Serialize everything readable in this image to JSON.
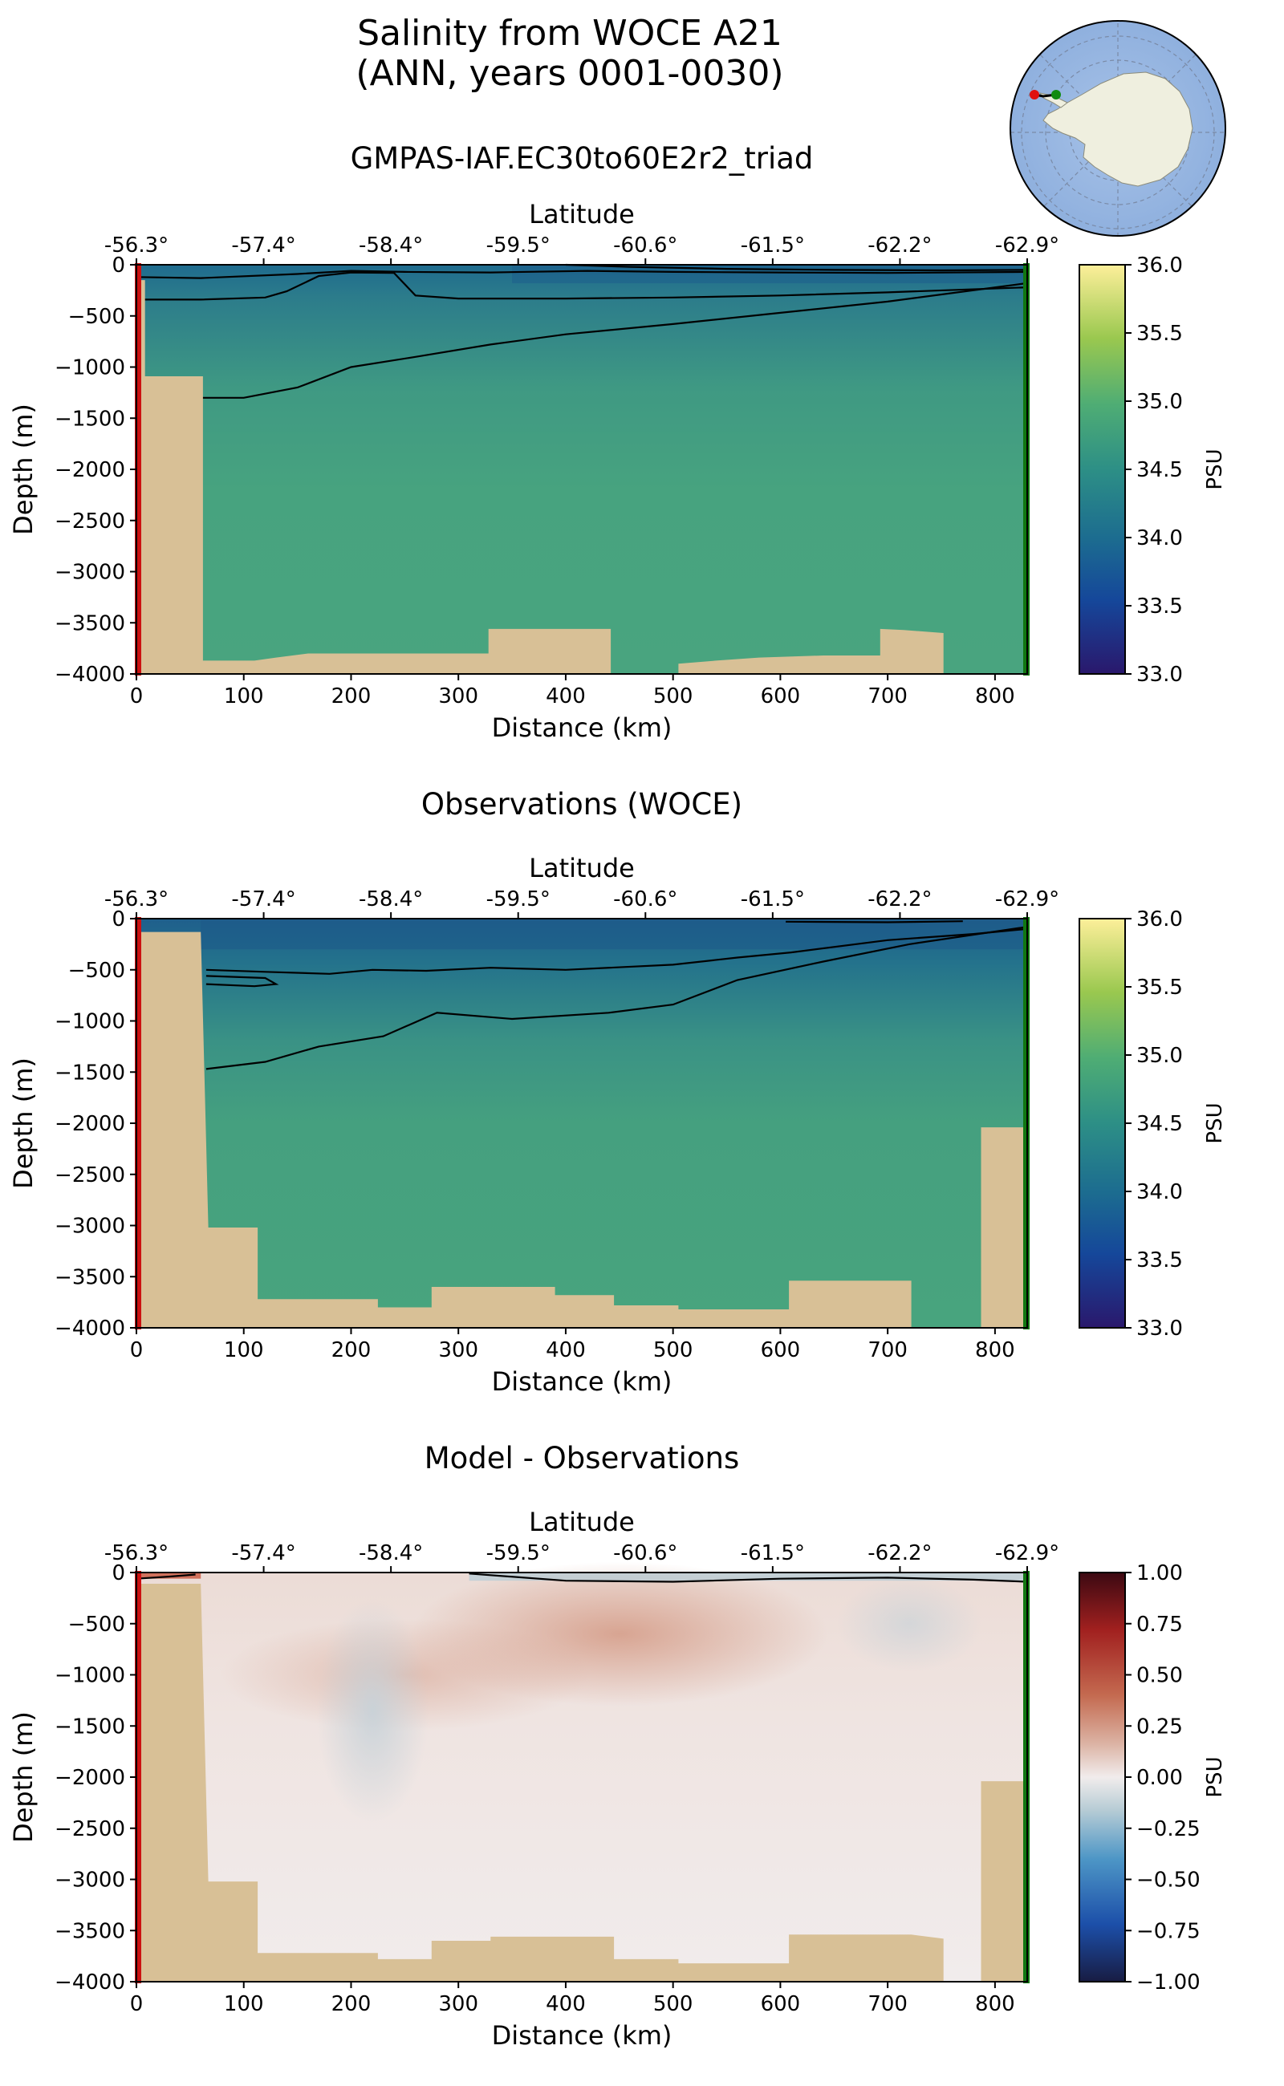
{
  "figure": {
    "title_line1": "Salinity from WOCE A21",
    "title_line2": "(ANN, years 0001-0030)",
    "colors": {
      "bathymetry": "#d8c096",
      "section_start_marker": "#cc1111",
      "section_end_marker": "#117711",
      "contour": "#000000",
      "ocean_map": "#9bb7e0",
      "antarctica_map": "#efefdf"
    },
    "inset_map": {
      "projection": "south-polar-stereographic",
      "position": "top-right",
      "start_marker": "red-dot-icon",
      "end_marker": "green-dot-icon"
    }
  },
  "chart_data": [
    {
      "type": "heatmap",
      "title": "GMPAS-IAF.EC30to60E2r2_triad",
      "xlabel": "Distance (km)",
      "ylabel": "Depth (m)",
      "top_xlabel": "Latitude",
      "xlim": [
        0,
        830
      ],
      "ylim": [
        -4000,
        0
      ],
      "xticks": [
        0,
        100,
        200,
        300,
        400,
        500,
        600,
        700,
        800
      ],
      "yticks": [
        0,
        -500,
        -1000,
        -1500,
        -2000,
        -2500,
        -3000,
        -3500,
        -4000
      ],
      "latitude_ticks": [
        "-56.3°",
        "-57.4°",
        "-58.4°",
        "-59.5°",
        "-60.6°",
        "-61.5°",
        "-62.2°",
        "-62.9°"
      ],
      "colorbar": {
        "label": "PSU",
        "range": [
          33.0,
          36.0
        ],
        "ticks": [
          "33.0",
          "33.5",
          "34.0",
          "34.5",
          "35.0",
          "35.5",
          "36.0"
        ],
        "colormap": "haline"
      },
      "field_description_values": {
        "surface": 34.05,
        "upper": 34.3,
        "deep": 34.68
      },
      "contours": [
        [
          [
            0,
            -120
          ],
          [
            60,
            -130
          ],
          [
            150,
            -90
          ],
          [
            200,
            -60
          ],
          [
            250,
            -70
          ],
          [
            330,
            -75
          ],
          [
            420,
            -60
          ],
          [
            500,
            -70
          ],
          [
            600,
            -75
          ],
          [
            700,
            -80
          ],
          [
            830,
            -70
          ]
        ],
        [
          [
            0,
            -340
          ],
          [
            60,
            -340
          ],
          [
            120,
            -320
          ],
          [
            140,
            -260
          ],
          [
            170,
            -110
          ],
          [
            200,
            -75
          ],
          [
            240,
            -80
          ],
          [
            260,
            -300
          ],
          [
            300,
            -330
          ],
          [
            400,
            -330
          ],
          [
            500,
            -320
          ],
          [
            600,
            -300
          ],
          [
            700,
            -270
          ],
          [
            830,
            -220
          ]
        ],
        [
          [
            60,
            -1300
          ],
          [
            100,
            -1300
          ],
          [
            150,
            -1200
          ],
          [
            200,
            -1000
          ],
          [
            260,
            -900
          ],
          [
            330,
            -780
          ],
          [
            400,
            -680
          ],
          [
            500,
            -580
          ],
          [
            600,
            -470
          ],
          [
            700,
            -360
          ],
          [
            830,
            -180
          ]
        ],
        [
          [
            400,
            0
          ],
          [
            460,
            -20
          ],
          [
            550,
            -40
          ],
          [
            650,
            -50
          ],
          [
            750,
            -55
          ],
          [
            830,
            -50
          ]
        ]
      ],
      "bathymetry": [
        [
          0,
          -150
        ],
        [
          8,
          -150
        ],
        [
          8,
          -1090
        ],
        [
          62,
          -1090
        ],
        [
          62,
          -3870
        ],
        [
          110,
          -3870
        ],
        [
          130,
          -3840
        ],
        [
          160,
          -3800
        ],
        [
          328,
          -3800
        ],
        [
          328,
          -3560
        ],
        [
          442,
          -3560
        ],
        [
          442,
          -4000
        ],
        [
          505,
          -4000
        ],
        [
          505,
          -3900
        ],
        [
          540,
          -3870
        ],
        [
          580,
          -3840
        ],
        [
          640,
          -3820
        ],
        [
          693,
          -3820
        ],
        [
          693,
          -3560
        ],
        [
          715,
          -3570
        ],
        [
          752,
          -3600
        ],
        [
          752,
          -4000
        ]
      ]
    },
    {
      "type": "heatmap",
      "title": "Observations (WOCE)",
      "xlabel": "Distance (km)",
      "ylabel": "Depth (m)",
      "top_xlabel": "Latitude",
      "xlim": [
        0,
        830
      ],
      "ylim": [
        -4000,
        0
      ],
      "xticks": [
        0,
        100,
        200,
        300,
        400,
        500,
        600,
        700,
        800
      ],
      "yticks": [
        0,
        -500,
        -1000,
        -1500,
        -2000,
        -2500,
        -3000,
        -3500,
        -4000
      ],
      "latitude_ticks": [
        "-56.3°",
        "-57.4°",
        "-58.4°",
        "-59.5°",
        "-60.6°",
        "-61.5°",
        "-62.2°",
        "-62.9°"
      ],
      "colorbar": {
        "label": "PSU",
        "range": [
          33.0,
          36.0
        ],
        "ticks": [
          "33.0",
          "33.5",
          "34.0",
          "34.5",
          "35.0",
          "35.5",
          "36.0"
        ],
        "colormap": "haline"
      },
      "contours": [
        [
          [
            65,
            -500
          ],
          [
            120,
            -520
          ],
          [
            180,
            -540
          ],
          [
            220,
            -500
          ],
          [
            270,
            -510
          ],
          [
            330,
            -480
          ],
          [
            400,
            -500
          ],
          [
            500,
            -450
          ],
          [
            560,
            -380
          ],
          [
            610,
            -330
          ],
          [
            700,
            -210
          ],
          [
            780,
            -150
          ],
          [
            830,
            -100
          ]
        ],
        [
          [
            65,
            -1470
          ],
          [
            120,
            -1400
          ],
          [
            170,
            -1250
          ],
          [
            230,
            -1150
          ],
          [
            280,
            -920
          ],
          [
            350,
            -980
          ],
          [
            440,
            -920
          ],
          [
            500,
            -840
          ],
          [
            560,
            -600
          ],
          [
            640,
            -420
          ],
          [
            720,
            -250
          ],
          [
            830,
            -80
          ]
        ],
        [
          [
            605,
            -30
          ],
          [
            700,
            -35
          ],
          [
            770,
            -25
          ]
        ],
        [
          [
            65,
            -560
          ],
          [
            120,
            -580
          ],
          [
            130,
            -640
          ],
          [
            110,
            -660
          ],
          [
            65,
            -640
          ]
        ]
      ],
      "bathymetry": [
        [
          0,
          -130
        ],
        [
          60,
          -130
        ],
        [
          67,
          -3020
        ],
        [
          113,
          -3020
        ],
        [
          113,
          -3720
        ],
        [
          225,
          -3720
        ],
        [
          225,
          -3800
        ],
        [
          275,
          -3800
        ],
        [
          275,
          -3600
        ],
        [
          390,
          -3600
        ],
        [
          390,
          -3680
        ],
        [
          445,
          -3680
        ],
        [
          445,
          -3780
        ],
        [
          505,
          -3780
        ],
        [
          505,
          -3820
        ],
        [
          608,
          -3820
        ],
        [
          608,
          -3540
        ],
        [
          722,
          -3540
        ],
        [
          722,
          -4000
        ],
        [
          787,
          -4000
        ],
        [
          787,
          -2040
        ],
        [
          830,
          -2040
        ]
      ]
    },
    {
      "type": "heatmap",
      "title": "Model - Observations",
      "xlabel": "Distance (km)",
      "ylabel": "Depth (m)",
      "top_xlabel": "Latitude",
      "xlim": [
        0,
        830
      ],
      "ylim": [
        -4000,
        0
      ],
      "xticks": [
        0,
        100,
        200,
        300,
        400,
        500,
        600,
        700,
        800
      ],
      "yticks": [
        0,
        -500,
        -1000,
        -1500,
        -2000,
        -2500,
        -3000,
        -3500,
        -4000
      ],
      "latitude_ticks": [
        "-56.3°",
        "-57.4°",
        "-58.4°",
        "-59.5°",
        "-60.6°",
        "-61.5°",
        "-62.2°",
        "-62.9°"
      ],
      "colorbar": {
        "label": "PSU",
        "range": [
          -1.0,
          1.0
        ],
        "ticks": [
          "−1.00",
          "−0.75",
          "−0.50",
          "−0.25",
          "0.00",
          "0.25",
          "0.50",
          "0.75",
          "1.00"
        ],
        "colormap": "balance"
      },
      "contours": [
        [
          [
            310,
            -10
          ],
          [
            400,
            -80
          ],
          [
            500,
            -90
          ],
          [
            600,
            -60
          ],
          [
            700,
            -50
          ],
          [
            780,
            -70
          ],
          [
            830,
            -90
          ]
        ],
        [
          [
            0,
            -60
          ],
          [
            30,
            -40
          ],
          [
            55,
            -20
          ]
        ]
      ],
      "bathymetry": [
        [
          0,
          -110
        ],
        [
          60,
          -110
        ],
        [
          67,
          -3020
        ],
        [
          113,
          -3020
        ],
        [
          113,
          -3720
        ],
        [
          225,
          -3720
        ],
        [
          225,
          -3780
        ],
        [
          275,
          -3780
        ],
        [
          275,
          -3600
        ],
        [
          330,
          -3600
        ],
        [
          330,
          -3560
        ],
        [
          445,
          -3560
        ],
        [
          445,
          -3780
        ],
        [
          505,
          -3780
        ],
        [
          505,
          -3820
        ],
        [
          608,
          -3820
        ],
        [
          608,
          -3540
        ],
        [
          722,
          -3540
        ],
        [
          752,
          -3580
        ],
        [
          752,
          -4000
        ],
        [
          787,
          -4000
        ],
        [
          787,
          -2040
        ],
        [
          830,
          -2040
        ]
      ]
    }
  ]
}
